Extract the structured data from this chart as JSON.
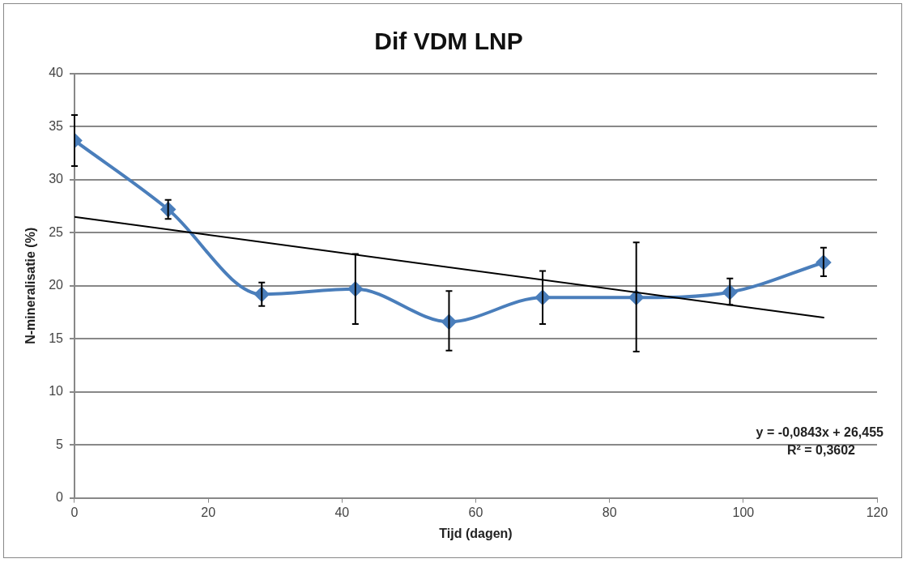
{
  "chart_data": {
    "type": "line",
    "title": "Dif VDM LNP",
    "xlabel": "Tijd (dagen)",
    "ylabel": "N-mineralisatie (%)",
    "x": [
      0,
      14,
      28,
      42,
      56,
      70,
      84,
      98,
      112
    ],
    "series": [
      {
        "color": "#4a7ebb",
        "values": [
          33.7,
          27.2,
          19.2,
          19.7,
          16.6,
          18.9,
          18.9,
          19.4,
          22.2
        ],
        "errors": [
          [
            31.3,
            36.1
          ],
          [
            26.3,
            28.1
          ],
          [
            18.1,
            20.3
          ],
          [
            16.4,
            23.0
          ],
          [
            13.9,
            19.5
          ],
          [
            16.4,
            21.4
          ],
          [
            13.8,
            24.1
          ],
          [
            18.2,
            20.7
          ],
          [
            20.9,
            23.6
          ]
        ],
        "marker": "diamond"
      },
      {
        "type": "line",
        "color": "#000000",
        "x": [
          0,
          112
        ],
        "values": [
          26.5,
          17.0
        ],
        "marker": "none"
      }
    ],
    "xlim": [
      0,
      120
    ],
    "xticks": [
      0,
      20,
      40,
      60,
      80,
      100,
      120
    ],
    "ylim": [
      0,
      40
    ],
    "yticks": [
      0,
      5,
      10,
      15,
      20,
      25,
      30,
      35,
      40
    ],
    "grid": "y",
    "legend": false,
    "annotations": [
      "y = -0,0843x + 26,455",
      "R² = 0,3602"
    ]
  }
}
